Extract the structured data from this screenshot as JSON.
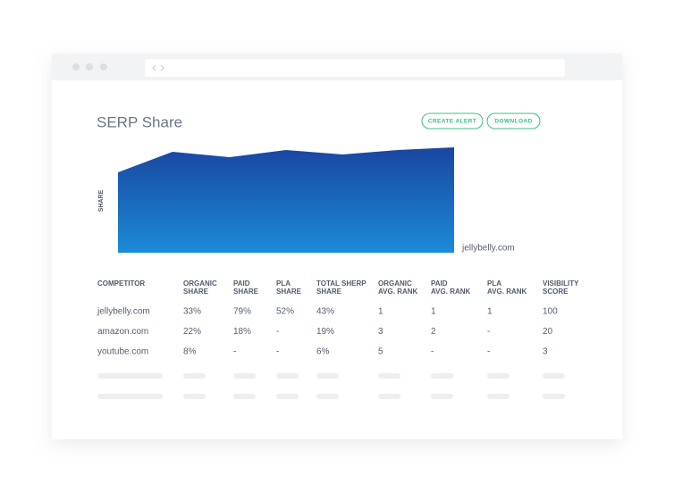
{
  "title": "SERP Share",
  "buttons": [
    "CREATE ALERT",
    "DOWNLOAD"
  ],
  "chart": {
    "y_label": "SHARE",
    "series_label": "jellybelly.com"
  },
  "table": {
    "headers": [
      [
        "COMPETITOR"
      ],
      [
        "ORGANIC",
        "SHARE"
      ],
      [
        "PAID",
        "SHARE"
      ],
      [
        "PLA",
        "SHARE"
      ],
      [
        "TOTAL SHERP",
        "SHARE"
      ],
      [
        "ORGANIC",
        "AVG. RANK"
      ],
      [
        "PAID",
        "AVG. RANK"
      ],
      [
        "PLA",
        "AVG. RANK"
      ],
      [
        "VISIBILITY",
        "SCORE"
      ]
    ],
    "rows": [
      [
        "jellybelly.com",
        "33%",
        "79%",
        "52%",
        "43%",
        "1",
        "1",
        "1",
        "100"
      ],
      [
        "amazon.com",
        "22%",
        "18%",
        "-",
        "19%",
        "3",
        "2",
        "-",
        "20"
      ],
      [
        "youtube.com",
        "8%",
        "-",
        "-",
        "6%",
        "5",
        "-",
        "-",
        "3"
      ]
    ]
  }
}
